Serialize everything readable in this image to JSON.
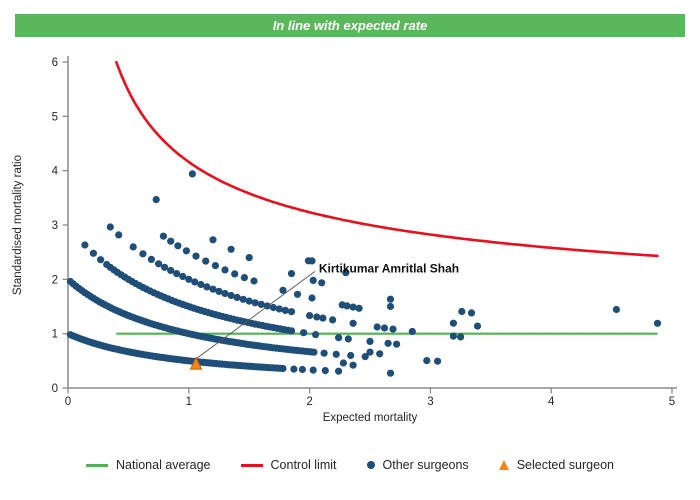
{
  "header": {
    "title": "In line with expected rate",
    "bg_color": "#5bb75b",
    "text_color": "#ffffff"
  },
  "chart_data": {
    "type": "scatter",
    "title": "",
    "xlabel": "Expected mortality",
    "ylabel": "Standardised mortality ratio",
    "xlim": [
      0,
      5
    ],
    "ylim": [
      0,
      6
    ],
    "xticks": [
      0,
      1,
      2,
      3,
      4,
      5
    ],
    "yticks": [
      0,
      1,
      2,
      3,
      4,
      5,
      6
    ],
    "grid": false,
    "axis_color": "#8a8a8a",
    "tick_label_color": "#262626",
    "national_average": {
      "label": "National average",
      "y": 1,
      "x_start": 0.4,
      "x_end": 4.88,
      "color": "#52b152"
    },
    "control_limit": {
      "label": "Control limit",
      "formula": "y = base + coef / sqrt(x)",
      "base": 1,
      "coef": 3.16,
      "x_start": 0.4,
      "x_end": 4.88,
      "color": "#e8101c",
      "sample_points": [
        [
          0.4,
          6.0
        ],
        [
          1.0,
          4.16
        ],
        [
          2.0,
          3.23
        ],
        [
          3.0,
          2.82
        ],
        [
          4.0,
          2.58
        ],
        [
          4.88,
          2.43
        ]
      ]
    },
    "other_surgeons": {
      "label": "Other surgeons",
      "color": "#1f4e79",
      "point_radius": 3.6,
      "band_formula": "y = k / (x + 1)",
      "bands": [
        {
          "k": 1,
          "dense": [
            0.02,
            1.8,
            0.022
          ],
          "sparse": [
            1.87,
            1.94,
            2.03,
            2.13,
            2.24,
            2.67
          ]
        },
        {
          "k": 2,
          "dense": [
            0.02,
            2.04,
            0.024
          ],
          "sparse": [
            2.12,
            2.22,
            2.34,
            2.46,
            2.97,
            3.06
          ]
        },
        {
          "k": 3,
          "dense": [
            0.32,
            1.86,
            0.03
          ],
          "sparse": [
            0.14,
            0.21,
            0.27,
            1.95,
            2.05,
            2.24,
            2.32,
            2.5,
            2.65,
            2.72
          ]
        },
        {
          "k": 4,
          "dense": [
            0.75,
            1.88,
            0.05
          ],
          "sparse": [
            0.35,
            0.42,
            0.54,
            0.62,
            0.69,
            2.0,
            2.06,
            2.11,
            2.19,
            2.36,
            2.56,
            2.62,
            2.69,
            2.85,
            3.19,
            3.25
          ]
        },
        {
          "k": 5,
          "dense": [
            0.98,
            1.6,
            0.08
          ],
          "sparse": [
            0.79,
            0.85,
            0.91,
            1.78,
            1.9,
            2.02,
            2.27,
            2.31,
            2.36,
            2.41,
            3.19,
            3.39
          ]
        },
        {
          "k": 6,
          "dense": [
            1.2,
            1.6,
            0.15
          ],
          "sparse": [
            0.73,
            1.85,
            2.03,
            2.1,
            2.67,
            3.26,
            3.34
          ]
        },
        {
          "k": 7,
          "dense": null,
          "sparse": [
            1.99,
            2.3,
            4.88
          ]
        },
        {
          "k": 8,
          "dense": null,
          "sparse": [
            1.03,
            4.54
          ]
        }
      ],
      "extra_points": [
        [
          2.5,
          0.66
        ],
        [
          2.58,
          0.63
        ],
        [
          2.28,
          0.46
        ],
        [
          2.36,
          0.42
        ],
        [
          2.02,
          2.34
        ],
        [
          2.67,
          1.5
        ]
      ]
    },
    "selected_surgeon": {
      "label": "Selected surgeon",
      "color": "#f5861f",
      "edge_color": "#bf6000",
      "x": 1.06,
      "y": 0.44
    },
    "annotation": {
      "text": "Kirtikumar Amritlal Shah",
      "text_x": 2.06,
      "text_y": 2.2,
      "target_x": 1.06,
      "target_y": 0.55,
      "line_color": "#555555",
      "text_color": "#111111"
    }
  },
  "legend": {
    "items": [
      {
        "label": "National average",
        "swatch": "line",
        "color": "#52b152"
      },
      {
        "label": "Control limit",
        "swatch": "line",
        "color": "#e8101c"
      },
      {
        "label": "Other surgeons",
        "swatch": "dot",
        "color": "#1f4e79"
      },
      {
        "label": "Selected surgeon",
        "swatch": "triangle",
        "color": "#f5861f"
      }
    ]
  }
}
